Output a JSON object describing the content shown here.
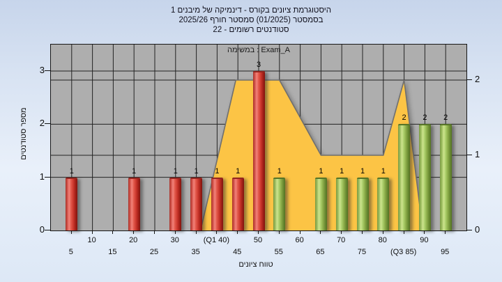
{
  "title": {
    "line1": "היסטוגרמת ציונים בקורס - דינמיקה של מיבנים 1",
    "line2": "בסמסטר (01/2025) סמסטר חורף 2025/26",
    "line3": "סטודנטים רשומים - 22"
  },
  "plot": {
    "overlay_label": "במשימה : Exam_A",
    "x_axis_label": "טווח ציונים",
    "y_axis_label": "מספר סטודנטים"
  },
  "chart_data": {
    "type": "bar",
    "title": "היסטוגרמת ציונים בקורס - דינמיקה של מיבנים 1",
    "subtitle_semester": "בסמסטר (01/2025) סמסטר חורף 2025/26",
    "subtitle_students": "סטודנטים רשומים - 22",
    "assignment": "Exam_A",
    "registered_students": 22,
    "xlabel": "טווח ציונים",
    "ylabel": "מספר סטודנטים",
    "x_range": [
      0,
      100
    ],
    "x_grid_step": 5,
    "y_left_ticks": [
      0,
      1,
      2,
      3
    ],
    "y_right_ticks": [
      0,
      1,
      2
    ],
    "x_ticks_row1": [
      {
        "x": 10,
        "label": "10"
      },
      {
        "x": 20,
        "label": "20"
      },
      {
        "x": 30,
        "label": "30"
      },
      {
        "x": 40,
        "label": "(Q1 40)"
      },
      {
        "x": 50,
        "label": "50"
      },
      {
        "x": 60,
        "label": "60"
      },
      {
        "x": 70,
        "label": "70"
      },
      {
        "x": 80,
        "label": "80"
      },
      {
        "x": 90,
        "label": "90"
      }
    ],
    "x_ticks_row2": [
      {
        "x": 5,
        "label": "5"
      },
      {
        "x": 15,
        "label": "15"
      },
      {
        "x": 25,
        "label": "25"
      },
      {
        "x": 35,
        "label": "35"
      },
      {
        "x": 45,
        "label": "45"
      },
      {
        "x": 55,
        "label": "55"
      },
      {
        "x": 65,
        "label": "65"
      },
      {
        "x": 75,
        "label": "75"
      },
      {
        "x": 85,
        "label": "(Q3 85)"
      },
      {
        "x": 95,
        "label": "95"
      }
    ],
    "bars": [
      {
        "x": 5,
        "value": 1,
        "color": "red"
      },
      {
        "x": 20,
        "value": 1,
        "color": "red"
      },
      {
        "x": 30,
        "value": 1,
        "color": "red"
      },
      {
        "x": 35,
        "value": 1,
        "color": "red"
      },
      {
        "x": 40,
        "value": 1,
        "color": "red"
      },
      {
        "x": 45,
        "value": 1,
        "color": "red"
      },
      {
        "x": 50,
        "value": 3,
        "color": "red"
      },
      {
        "x": 55,
        "value": 1,
        "color": "green"
      },
      {
        "x": 65,
        "value": 1,
        "color": "green"
      },
      {
        "x": 70,
        "value": 1,
        "color": "green"
      },
      {
        "x": 75,
        "value": 1,
        "color": "green"
      },
      {
        "x": 80,
        "value": 1,
        "color": "green"
      },
      {
        "x": 85,
        "value": 2,
        "color": "green"
      },
      {
        "x": 90,
        "value": 2,
        "color": "green"
      },
      {
        "x": 95,
        "value": 2,
        "color": "green"
      }
    ],
    "area_series": {
      "axis": "right",
      "points": [
        [
          36,
          0
        ],
        [
          44.5,
          2
        ],
        [
          55,
          2
        ],
        [
          65,
          1
        ],
        [
          80,
          1
        ],
        [
          85,
          2
        ],
        [
          89.5,
          0
        ]
      ]
    },
    "colors": {
      "bar_red": "#cc3a30",
      "bar_green": "#8fae4d",
      "area_fill": "#fcc445",
      "area_edge": "#6f6f6f",
      "plot_bg": "#aeaeae",
      "grid": "#222222",
      "page_bg": "#dbe6f5"
    }
  }
}
